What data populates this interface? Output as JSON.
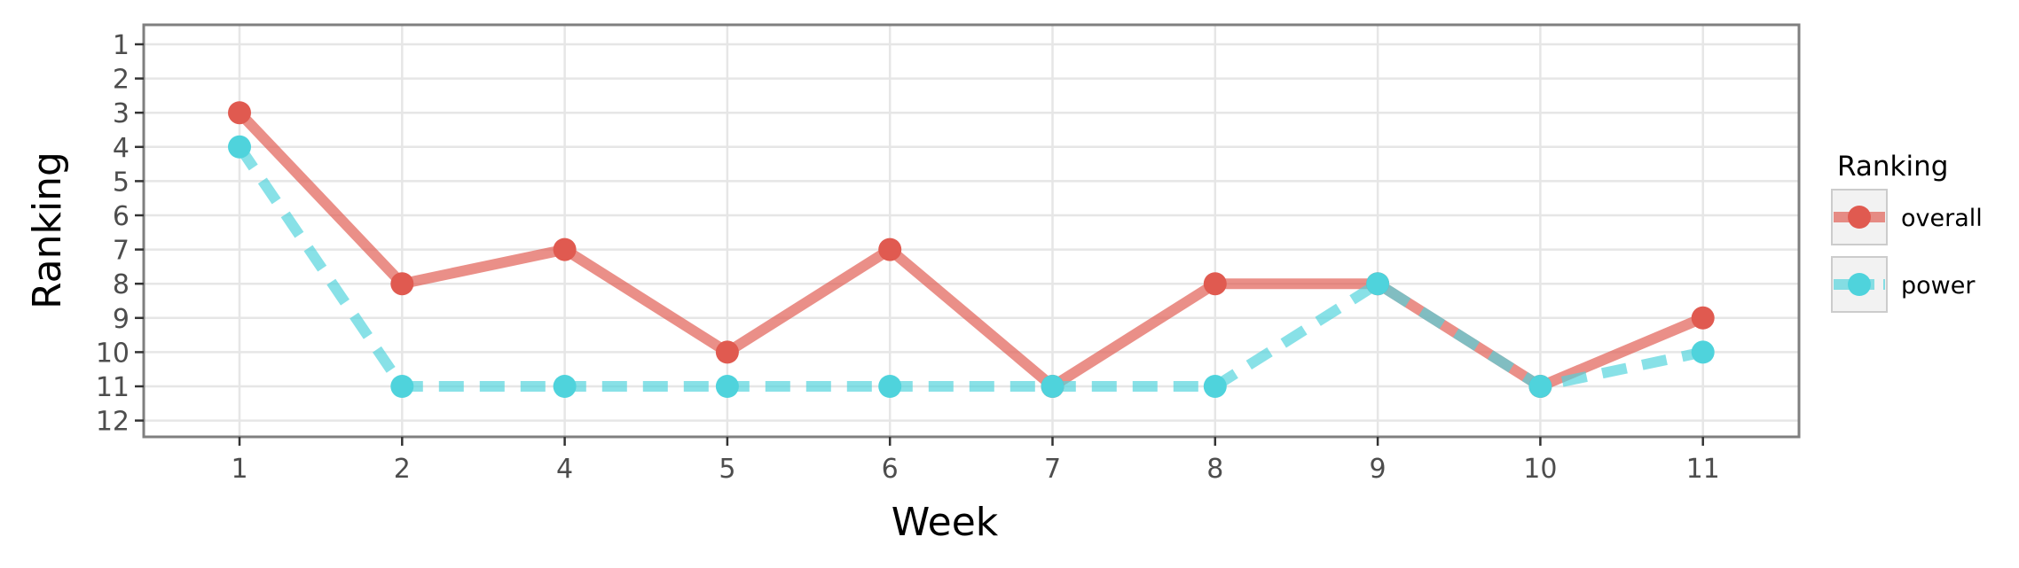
{
  "chart_data": {
    "type": "line",
    "xlabel": "Week",
    "ylabel": "Ranking",
    "categories": [
      "1",
      "2",
      "4",
      "5",
      "6",
      "7",
      "8",
      "9",
      "10",
      "11"
    ],
    "y_ticks": [
      "1",
      "2",
      "3",
      "4",
      "5",
      "6",
      "7",
      "8",
      "9",
      "10",
      "11",
      "12"
    ],
    "ylim": [
      12,
      1
    ],
    "y_reversed": true,
    "grid": true,
    "legend": {
      "title": "Ranking",
      "placement": "right"
    },
    "series": [
      {
        "name": "overall",
        "color": "#e05a50",
        "line_style": "solid",
        "values": [
          3,
          8,
          7,
          10,
          7,
          11,
          8,
          8,
          11,
          9
        ]
      },
      {
        "name": "power",
        "color": "#4fd3dc",
        "line_style": "dashed",
        "values": [
          4,
          11,
          11,
          11,
          11,
          11,
          11,
          8,
          11,
          10
        ]
      }
    ]
  }
}
